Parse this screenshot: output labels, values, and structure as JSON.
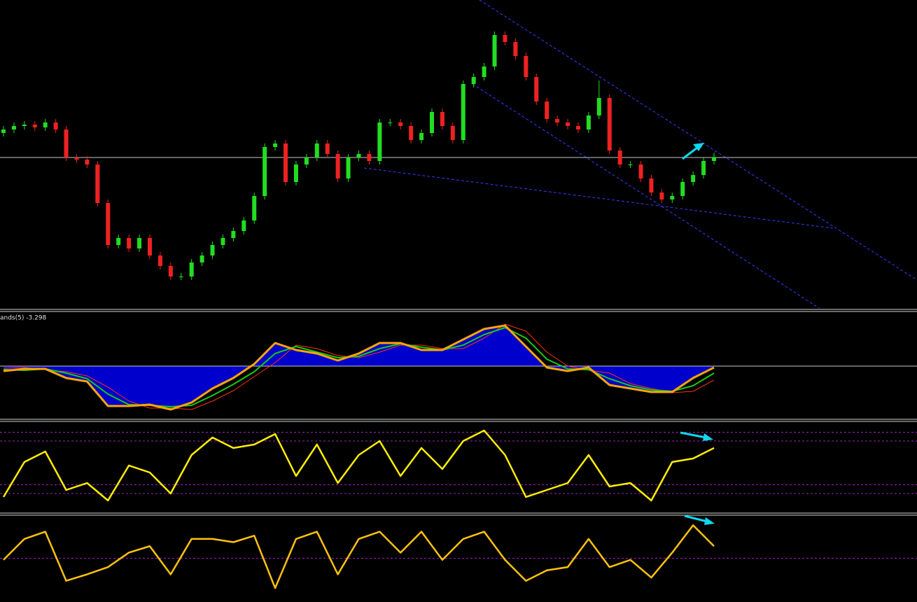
{
  "chart_data": [
    {
      "type": "candlestick",
      "ylim": [
        0,
        440
      ],
      "hline": 215,
      "up_color": "#22dd22",
      "down_color": "#ee2222",
      "open": [
        250,
        255,
        260,
        262,
        258,
        265,
        255,
        215,
        212,
        205,
        150,
        90,
        100,
        85,
        100,
        75,
        60,
        45,
        45,
        65,
        75,
        90,
        100,
        110,
        125,
        160,
        230,
        235,
        180,
        205,
        215,
        235,
        220,
        185,
        215,
        220,
        210,
        265,
        265,
        260,
        240,
        250,
        280,
        260,
        240,
        320,
        330,
        345,
        390,
        380,
        360,
        330,
        295,
        270,
        265,
        260,
        255,
        275,
        300,
        225,
        205,
        205,
        185,
        165,
        155,
        160,
        180,
        190,
        210
      ],
      "high": [
        260,
        265,
        267,
        267,
        270,
        270,
        260,
        220,
        217,
        210,
        155,
        105,
        105,
        105,
        105,
        80,
        65,
        50,
        70,
        80,
        95,
        105,
        115,
        130,
        165,
        235,
        240,
        240,
        210,
        220,
        240,
        240,
        225,
        220,
        225,
        225,
        270,
        270,
        270,
        265,
        255,
        285,
        285,
        265,
        325,
        335,
        350,
        395,
        395,
        385,
        365,
        335,
        300,
        275,
        270,
        265,
        280,
        325,
        305,
        230,
        210,
        210,
        190,
        170,
        165,
        185,
        195,
        215,
        222
      ],
      "low": [
        245,
        250,
        255,
        253,
        253,
        250,
        210,
        207,
        200,
        145,
        85,
        85,
        80,
        80,
        70,
        55,
        40,
        40,
        40,
        60,
        70,
        85,
        95,
        105,
        120,
        155,
        225,
        175,
        175,
        200,
        210,
        215,
        180,
        180,
        210,
        205,
        205,
        260,
        255,
        235,
        235,
        245,
        255,
        235,
        235,
        315,
        325,
        340,
        375,
        355,
        325,
        290,
        265,
        260,
        255,
        250,
        250,
        270,
        220,
        200,
        200,
        180,
        160,
        150,
        150,
        155,
        175,
        185,
        205
      ],
      "close": [
        255,
        260,
        262,
        258,
        265,
        255,
        215,
        212,
        205,
        150,
        90,
        100,
        85,
        100,
        75,
        60,
        45,
        45,
        65,
        75,
        90,
        100,
        110,
        125,
        160,
        230,
        235,
        180,
        205,
        215,
        235,
        220,
        185,
        215,
        220,
        210,
        265,
        265,
        260,
        240,
        250,
        280,
        260,
        240,
        320,
        330,
        345,
        390,
        380,
        360,
        330,
        295,
        270,
        265,
        260,
        255,
        275,
        300,
        225,
        205,
        205,
        185,
        165,
        155,
        160,
        180,
        190,
        210,
        215
      ]
    },
    {
      "type": "line",
      "title": "ands(5) -3.298",
      "ylim": [
        -76,
        76
      ],
      "hline": 0,
      "area_color": "#0000cc",
      "series": [
        {
          "color": "#ff3010",
          "width": 1,
          "values": [
            -3,
            -2,
            -5,
            -8,
            -14,
            -30,
            -50,
            -60,
            -60,
            -62,
            -50,
            -35,
            -15,
            5,
            30,
            25,
            15,
            12,
            20,
            30,
            30,
            25,
            25,
            40,
            60,
            50,
            20,
            0,
            -6,
            -10,
            -25,
            -32,
            -38,
            -36,
            -20
          ]
        },
        {
          "color": "#18c818",
          "width": 2,
          "values": [
            -5,
            -6,
            -4,
            -10,
            -18,
            -40,
            -55,
            -56,
            -58,
            -56,
            -42,
            -26,
            -8,
            18,
            28,
            20,
            12,
            14,
            25,
            32,
            27,
            23,
            30,
            45,
            55,
            40,
            10,
            -4,
            -5,
            -18,
            -28,
            -34,
            -36,
            -28,
            -10
          ]
        },
        {
          "color": "#ffa500",
          "width": 3,
          "area": true,
          "values": [
            -7,
            -4,
            -4,
            -17,
            -22,
            -57,
            -57,
            -55,
            -62,
            -52,
            -32,
            -17,
            3,
            33,
            23,
            18,
            8,
            18,
            33,
            33,
            23,
            23,
            38,
            53,
            58,
            28,
            -2,
            -7,
            -2,
            -27,
            -32,
            -37,
            -37,
            -17,
            -2
          ]
        }
      ]
    },
    {
      "type": "line",
      "ylim": [
        0,
        100
      ],
      "levels": [
        90,
        80,
        30,
        20
      ],
      "level_color": "#a020c0",
      "series": [
        {
          "color": "#ffee00",
          "width": 2.5,
          "values": [
            16,
            56,
            68,
            24,
            32,
            12,
            52,
            44,
            20,
            64,
            84,
            72,
            76,
            88,
            40,
            76,
            32,
            64,
            80,
            40,
            72,
            48,
            80,
            92,
            64,
            16,
            24,
            32,
            64,
            28,
            32,
            12,
            56,
            60,
            72
          ]
        }
      ]
    },
    {
      "type": "line",
      "ylim": [
        0,
        100
      ],
      "levels": [
        50
      ],
      "level_color": "#a020c0",
      "series": [
        {
          "color": "#ffc20e",
          "width": 2.5,
          "values": [
            48,
            74,
            83,
            22,
            30,
            39,
            57,
            65,
            30,
            74,
            74,
            70,
            78,
            13,
            74,
            83,
            30,
            74,
            83,
            57,
            83,
            48,
            74,
            83,
            48,
            22,
            35,
            39,
            74,
            39,
            48,
            26,
            57,
            91,
            65
          ]
        }
      ]
    }
  ]
}
